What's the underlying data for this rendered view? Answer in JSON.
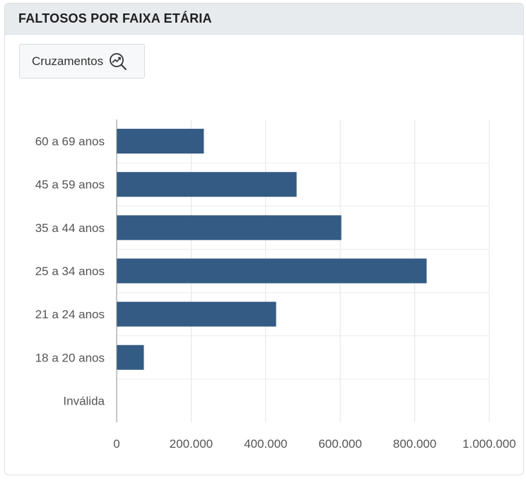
{
  "header": {
    "title": "FALTOSOS POR FAIXA ETÁRIA"
  },
  "toolbar": {
    "cross_label": "Cruzamentos",
    "cross_icon": "chart-search-icon"
  },
  "chart_data": {
    "type": "bar",
    "orientation": "horizontal",
    "title": "",
    "xlabel": "",
    "ylabel": "",
    "categories": [
      "60 a 69 anos",
      "45 a 59 anos",
      "35 a 44 anos",
      "25 a 34 anos",
      "21 a 24 anos",
      "18 a 20 anos",
      "Inválida"
    ],
    "values": [
      234000,
      483000,
      603000,
      832000,
      428000,
      73000,
      0
    ],
    "xlim": [
      0,
      1000000
    ],
    "xticks": [
      0,
      200000,
      400000,
      600000,
      800000,
      1000000
    ],
    "xtick_labels": [
      "0",
      "200.000",
      "400.000",
      "600.000",
      "800.000",
      "1.000.000"
    ],
    "bar_color": "#335b84",
    "grid": true,
    "legend": "none"
  }
}
